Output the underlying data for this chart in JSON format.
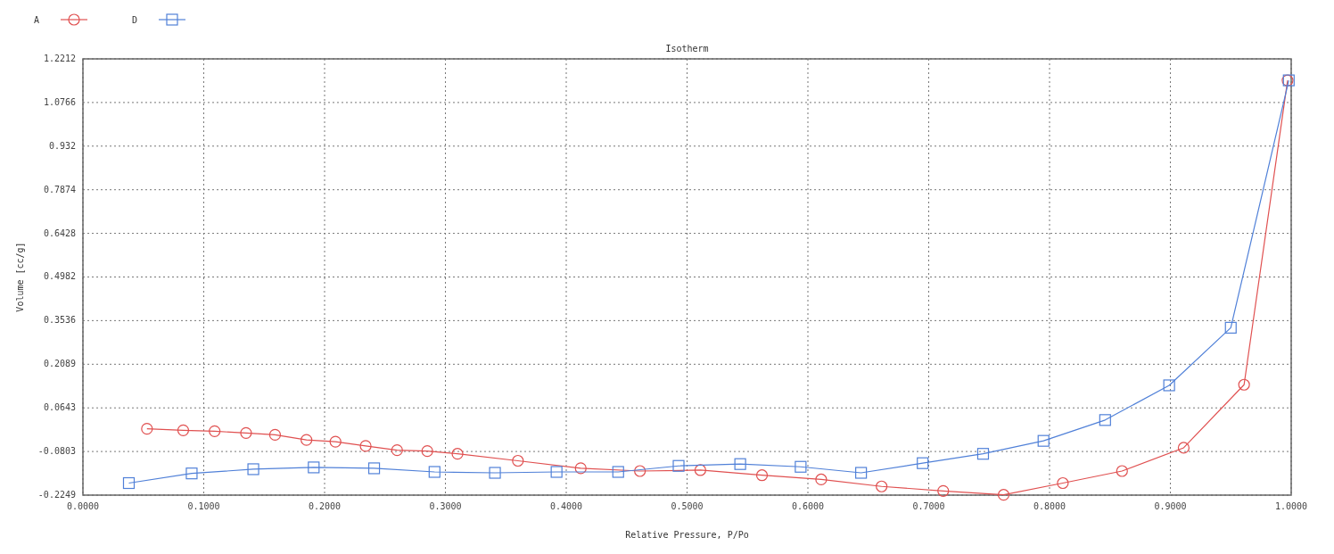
{
  "chart_data": {
    "type": "line",
    "title": "Isotherm",
    "xlabel": "Relative Pressure, P/Po",
    "ylabel": "Volume [cc/g]",
    "xlim": [
      0,
      1
    ],
    "xticks": [
      {
        "value": 0,
        "label": "0.0000"
      },
      {
        "value": 0.1,
        "label": "0.1000"
      },
      {
        "value": 0.2,
        "label": "0.2000"
      },
      {
        "value": 0.3,
        "label": "0.3000"
      },
      {
        "value": 0.4,
        "label": "0.4000"
      },
      {
        "value": 0.5,
        "label": "0.5000"
      },
      {
        "value": 0.6,
        "label": "0.6000"
      },
      {
        "value": 0.7,
        "label": "0.7000"
      },
      {
        "value": 0.8,
        "label": "0.8000"
      },
      {
        "value": 0.9,
        "label": "0.9000"
      },
      {
        "value": 1,
        "label": "1.0000"
      }
    ],
    "ylim": [
      -0.2249,
      1.2212
    ],
    "yticks": [
      -0.2249,
      {
        "value": -0.0803,
        "label": "-0.0803"
      },
      0.0643,
      0.2089,
      0.3536,
      0.4982,
      0.6428,
      0.7874,
      0.932,
      1.0766,
      1.2212
    ],
    "grid": true,
    "legend": "top left",
    "line_style": "solid",
    "series": [
      {
        "name": "A",
        "color": "#e05050",
        "marker": "circle",
        "x": [
          0.053,
          0.083,
          0.109,
          0.135,
          0.159,
          0.185,
          0.209,
          0.234,
          0.26,
          0.285,
          0.31,
          0.36,
          0.412,
          0.461,
          0.511,
          0.562,
          0.611,
          0.661,
          0.712,
          0.762,
          0.811,
          0.86,
          0.911,
          0.961,
          0.997
        ],
        "values": [
          -0.005,
          -0.01,
          -0.013,
          -0.019,
          -0.025,
          -0.042,
          -0.048,
          -0.062,
          -0.076,
          -0.079,
          -0.088,
          -0.111,
          -0.136,
          -0.145,
          -0.142,
          -0.159,
          -0.173,
          -0.196,
          -0.211,
          -0.224,
          -0.185,
          -0.145,
          -0.068,
          0.141,
          1.15
        ]
      },
      {
        "name": "D",
        "color": "#5080d8",
        "marker": "square",
        "x": [
          0.038,
          0.09,
          0.141,
          0.191,
          0.241,
          0.291,
          0.341,
          0.392,
          0.443,
          0.493,
          0.544,
          0.594,
          0.644,
          0.695,
          0.745,
          0.795,
          0.846,
          0.899,
          0.95,
          0.998
        ],
        "values": [
          -0.185,
          -0.153,
          -0.139,
          -0.133,
          -0.136,
          -0.148,
          -0.151,
          -0.148,
          -0.148,
          -0.128,
          -0.122,
          -0.131,
          -0.151,
          -0.119,
          -0.088,
          -0.045,
          0.024,
          0.139,
          0.33,
          1.15
        ]
      }
    ]
  }
}
